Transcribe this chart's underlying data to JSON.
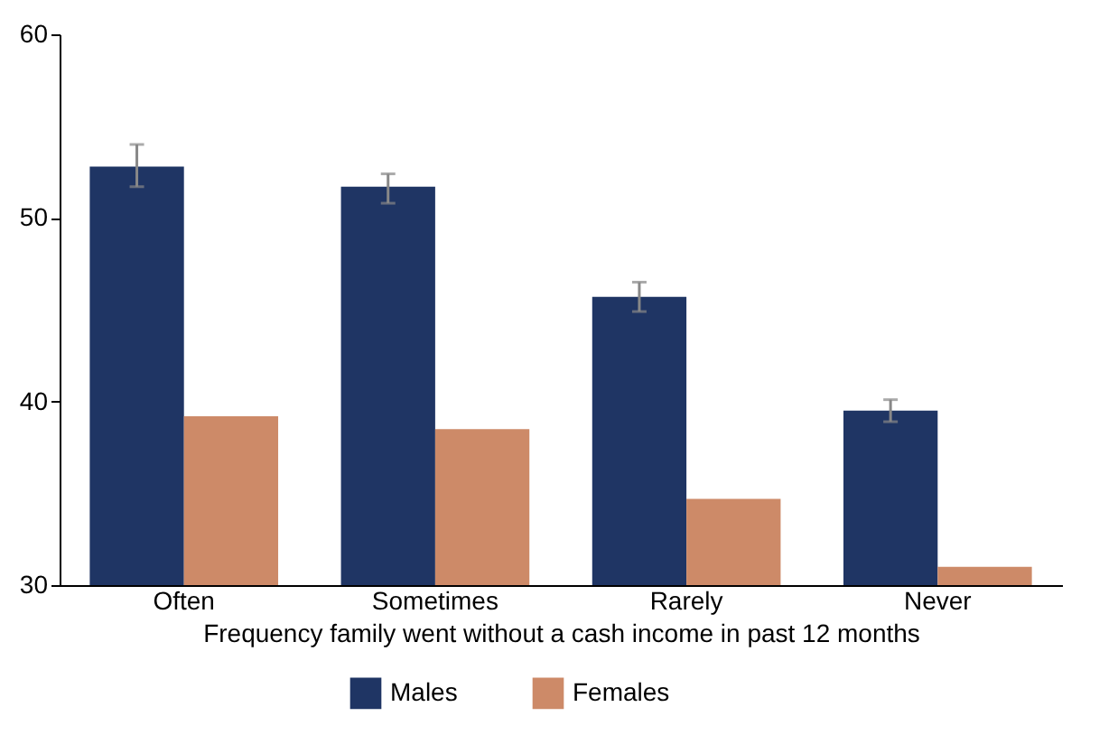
{
  "chart_data": {
    "type": "bar",
    "xlabel": "Frequency family went without a cash income in past 12 months",
    "categories": [
      "Often",
      "Sometimes",
      "Rarely",
      "Never"
    ],
    "series": [
      {
        "name": "Males",
        "color": "#1f3564",
        "values": [
          52.8,
          51.7,
          45.7,
          39.5
        ],
        "errors": [
          [
            51.7,
            54.0
          ],
          [
            50.8,
            52.4
          ],
          [
            44.9,
            46.5
          ],
          [
            38.9,
            40.1
          ]
        ]
      },
      {
        "name": "Females",
        "color": "#cd8a68",
        "values": [
          39.2,
          38.5,
          34.7,
          31.0
        ]
      }
    ],
    "ylim": [
      30,
      60
    ],
    "yticks": [
      30,
      40,
      50,
      60
    ],
    "grid": false,
    "legend": "bottom"
  }
}
